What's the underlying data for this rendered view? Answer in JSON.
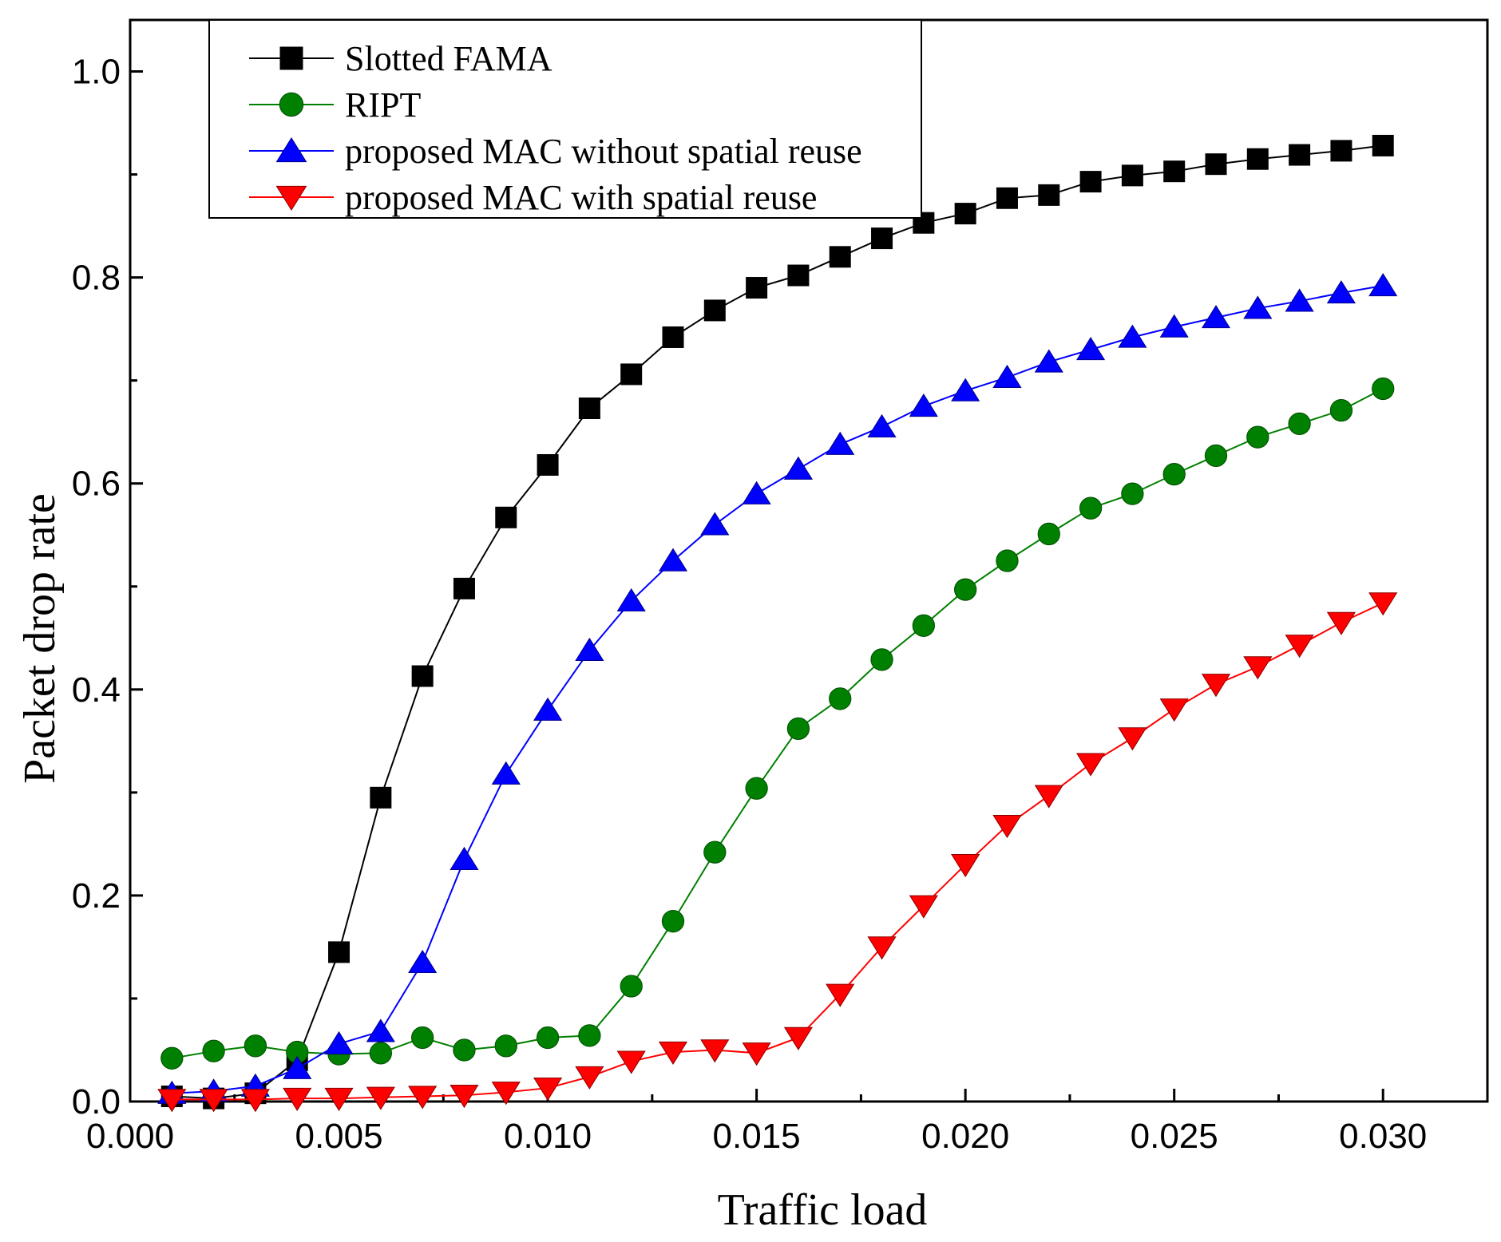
{
  "chart_data": {
    "type": "line",
    "title": "",
    "xlabel": "Traffic load",
    "ylabel": "Packet drop rate",
    "xlim": [
      0.0,
      0.0325
    ],
    "ylim": [
      0.0,
      1.05
    ],
    "xticks": [
      0.0,
      0.005,
      0.01,
      0.015,
      0.02,
      0.025,
      0.03
    ],
    "xtick_labels": [
      "0.000",
      "0.005",
      "0.010",
      "0.015",
      "0.020",
      "0.025",
      "0.030"
    ],
    "yticks": [
      0.0,
      0.2,
      0.4,
      0.6,
      0.8,
      1.0
    ],
    "ytick_labels": [
      "0.0",
      "0.2",
      "0.4",
      "0.6",
      "0.8",
      "1.0"
    ],
    "legend_position": "top-left",
    "grid": false,
    "x": [
      0.001,
      0.002,
      0.003,
      0.004,
      0.005,
      0.006,
      0.007,
      0.008,
      0.009,
      0.01,
      0.011,
      0.012,
      0.013,
      0.014,
      0.015,
      0.016,
      0.017,
      0.018,
      0.019,
      0.02,
      0.021,
      0.022,
      0.023,
      0.024,
      0.025,
      0.026,
      0.027,
      0.028,
      0.029,
      0.03
    ],
    "series": [
      {
        "name": "Slotted FAMA",
        "color": "#000000",
        "marker": "square",
        "values": [
          0.005,
          0.003,
          0.008,
          0.04,
          0.145,
          0.295,
          0.413,
          0.498,
          0.567,
          0.618,
          0.673,
          0.706,
          0.742,
          0.768,
          0.79,
          0.802,
          0.82,
          0.838,
          0.853,
          0.862,
          0.877,
          0.88,
          0.893,
          0.899,
          0.903,
          0.91,
          0.915,
          0.919,
          0.923,
          0.928
        ]
      },
      {
        "name": "RIPT",
        "color": "#008000",
        "marker": "circle",
        "values": [
          0.042,
          0.049,
          0.054,
          0.048,
          0.046,
          0.047,
          0.062,
          0.05,
          0.054,
          0.062,
          0.064,
          0.112,
          0.175,
          0.242,
          0.304,
          0.362,
          0.391,
          0.429,
          0.462,
          0.497,
          0.525,
          0.551,
          0.576,
          0.59,
          0.609,
          0.627,
          0.645,
          0.658,
          0.671,
          0.692
        ]
      },
      {
        "name": "proposed MAC without spatial  reuse",
        "color": "#0000ff",
        "marker": "triangle-up",
        "values": [
          0.008,
          0.01,
          0.015,
          0.032,
          0.056,
          0.068,
          0.135,
          0.235,
          0.318,
          0.38,
          0.438,
          0.486,
          0.525,
          0.56,
          0.59,
          0.614,
          0.638,
          0.655,
          0.675,
          0.69,
          0.703,
          0.718,
          0.73,
          0.742,
          0.752,
          0.761,
          0.77,
          0.777,
          0.785,
          0.792
        ]
      },
      {
        "name": "proposed MAC with spatial  reuse",
        "color": "#ff0000",
        "marker": "triangle-down",
        "values": [
          0.002,
          0.002,
          0.002,
          0.003,
          0.003,
          0.004,
          0.005,
          0.006,
          0.009,
          0.013,
          0.024,
          0.039,
          0.048,
          0.05,
          0.047,
          0.062,
          0.104,
          0.15,
          0.19,
          0.23,
          0.268,
          0.297,
          0.328,
          0.353,
          0.381,
          0.405,
          0.422,
          0.443,
          0.465,
          0.484
        ]
      }
    ]
  }
}
